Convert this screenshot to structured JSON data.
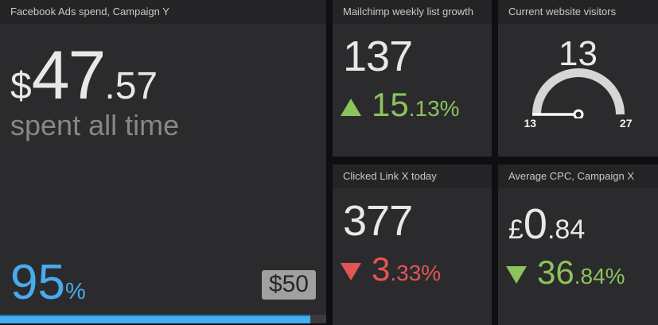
{
  "colors": {
    "background": "#0f0f11",
    "tile_body": "#2b2b2d",
    "tile_header": "#242426",
    "text_primary": "#e8e8e8",
    "text_secondary": "#878787",
    "text_title": "#c9c9c9",
    "accent_blue": "#44aef3",
    "accent_green": "#8cc35c",
    "accent_red": "#e25555",
    "badge_background": "#a0a0a0",
    "gauge_arc": "#d6d6d6",
    "gauge_needle": "#ffffff"
  },
  "tiles": {
    "facebook_spend": {
      "title": "Facebook Ads spend, Campaign Y",
      "currency": "$",
      "amount_int": "47",
      "amount_dec": ".57",
      "caption": "spent all time",
      "progress_value": "95",
      "progress_unit": "%",
      "progress_percent": 95,
      "goal_label": "$50"
    },
    "mailchimp_growth": {
      "title": "Mailchimp weekly list growth",
      "value": "137",
      "change_direction": "up",
      "change_int": "15",
      "change_frac": ".13%",
      "change_color": "#8cc35c"
    },
    "website_visitors": {
      "title": "Current website visitors",
      "value": "13",
      "gauge": {
        "min": "13",
        "max": "27",
        "value": 13,
        "type": "half-circle"
      }
    },
    "clicked_link": {
      "title": "Clicked Link X today",
      "value": "377",
      "change_direction": "down",
      "change_int": "3",
      "change_frac": ".33%",
      "change_color": "#e25555"
    },
    "average_cpc": {
      "title": "Average CPC, Campaign X",
      "currency": "£",
      "amount_int": "0",
      "amount_dec": ".84",
      "change_direction": "down",
      "change_int": "36",
      "change_frac": ".84%",
      "change_color": "#8cc35c"
    }
  }
}
